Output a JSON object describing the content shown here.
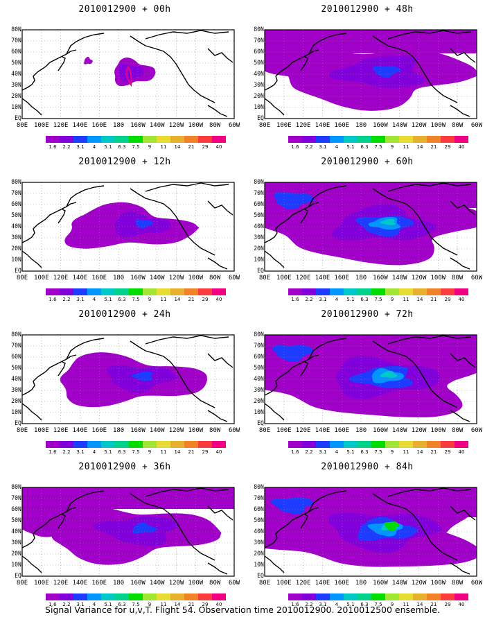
{
  "panels": [
    {
      "title": "2010012900 + 00h",
      "level": 0
    },
    {
      "title": "2010012900 + 12h",
      "level": 1
    },
    {
      "title": "2010012900 + 24h",
      "level": 2
    },
    {
      "title": "2010012900 + 36h",
      "level": 3
    },
    {
      "title": "2010012900 + 48h",
      "level": 4
    },
    {
      "title": "2010012900 + 60h",
      "level": 5
    },
    {
      "title": "2010012900 + 72h",
      "level": 6
    },
    {
      "title": "2010012900 + 84h",
      "level": 7
    }
  ],
  "y_labels": [
    "80N",
    "70N",
    "60N",
    "50N",
    "40N",
    "30N",
    "20N",
    "10N",
    "EQ"
  ],
  "x_labels": [
    "80E",
    "100E",
    "120E",
    "140E",
    "160E",
    "180",
    "160W",
    "140W",
    "120W",
    "100W",
    "80W",
    "60W"
  ],
  "colorbar": {
    "colors": [
      "#a000c8",
      "#8200dc",
      "#1e3cff",
      "#0096ff",
      "#00c8c8",
      "#00d28c",
      "#00dc00",
      "#a0e632",
      "#e6dc32",
      "#e6af2d",
      "#f08228",
      "#fa3c3c",
      "#f00082"
    ],
    "labels": [
      "1.6",
      "2.2",
      "3.1",
      "4",
      "5.1",
      "6.3",
      "7.5",
      "9",
      "11",
      "14",
      "21",
      "29",
      "40"
    ]
  },
  "footer": "Signal Variance for u,v,T. Flight 54. Observation time 2010012900. 2010012500 ensemble."
}
